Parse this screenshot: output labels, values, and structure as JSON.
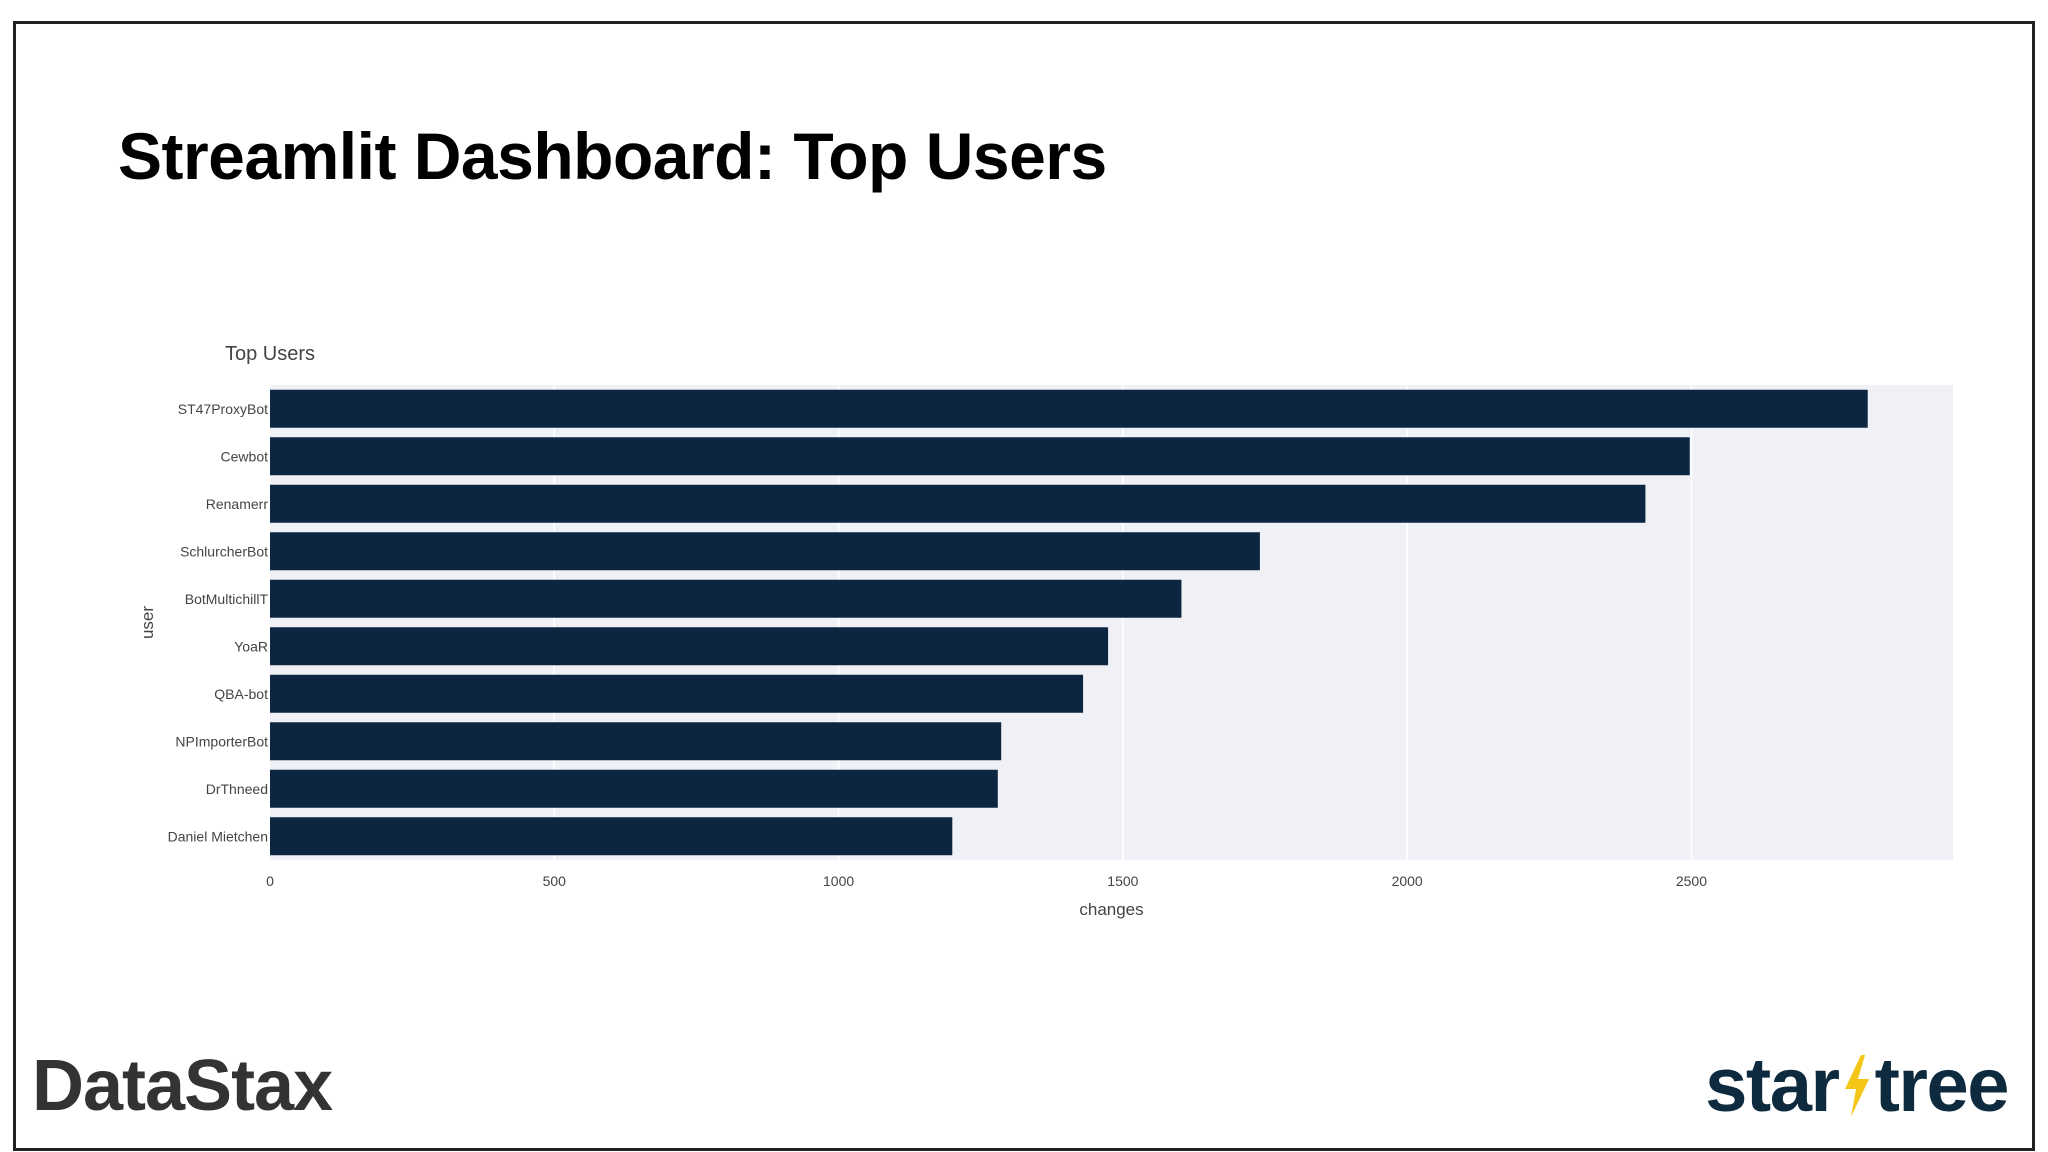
{
  "slide": {
    "title": "Streamlit Dashboard: Top Users"
  },
  "colors": {
    "bar": "#0c2541",
    "plot_bg": "#f0f1f6",
    "grid": "#ffffff",
    "logo_bolt": "#f5c518"
  },
  "logos": {
    "left": "DataStax",
    "right_part1": "star",
    "right_part2": "tree"
  },
  "chart_data": {
    "type": "bar",
    "orientation": "horizontal",
    "title": "Top Users",
    "xlabel": "changes",
    "ylabel": "user",
    "categories": [
      "ST47ProxyBot",
      "Cewbot",
      "Renamerr",
      "SchlurcherBot",
      "BotMultichillT",
      "YoaR",
      "QBA-bot",
      "NPImporterBot",
      "DrThneed",
      "Daniel Mietchen"
    ],
    "values": [
      2810,
      2497,
      2419,
      1741,
      1603,
      1474,
      1430,
      1286,
      1280,
      1200
    ],
    "xlim": [
      0,
      2960
    ],
    "xticks": [
      0,
      500,
      1000,
      1500,
      2000,
      2500
    ],
    "grid": true,
    "legend": "none"
  }
}
